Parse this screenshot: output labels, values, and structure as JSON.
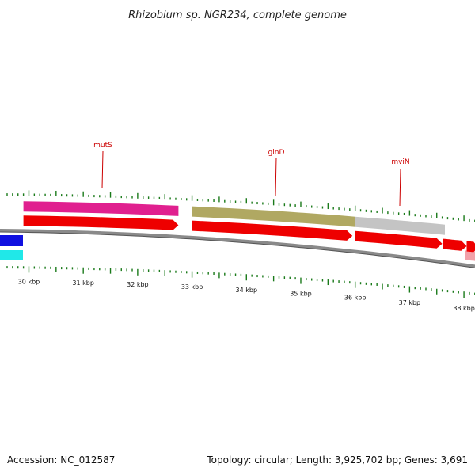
{
  "title": "Rhizobium sp. NGR234, complete genome",
  "footer": {
    "accession": "Accession: NC_012587",
    "summary": "Topology: circular; Length: 3,925,702 bp; Genes: 3,691"
  },
  "view": {
    "start_kbp": 29.6,
    "end_kbp": 38.7
  },
  "scale_labels": [
    "30 kbp",
    "31 kbp",
    "32 kbp",
    "33 kbp",
    "34 kbp",
    "35 kbp",
    "36 kbp",
    "37 kbp",
    "38 kbp"
  ],
  "scale_label_kbp": [
    30,
    31,
    32,
    33,
    34,
    35,
    36,
    37,
    38
  ],
  "colors": {
    "tick": "#1a7a1a",
    "backbone": "#8a8a8a",
    "gene_arrow": "#ee0000",
    "label": "#cc0000",
    "mutS": "#e0208f",
    "glnD": "#b0a862",
    "mviN": "#c4c4c4",
    "next_feature": "#f2a0a8",
    "blue_feature": "#1010e0",
    "cyan_feature": "#20e8e8"
  },
  "annotations": [
    {
      "name": "mutS",
      "start_kbp": 29.9,
      "end_kbp": 32.75,
      "color": "mutS"
    },
    {
      "name": "glnD",
      "start_kbp": 33.0,
      "end_kbp": 36.0,
      "color": "glnD"
    },
    {
      "name": "mviN",
      "start_kbp": 36.0,
      "end_kbp": 37.65,
      "color": "mviN"
    }
  ],
  "annotation_labels": [
    "mutS",
    "glnD",
    "mviN"
  ],
  "genes": [
    {
      "start_kbp": 29.9,
      "end_kbp": 32.75
    },
    {
      "start_kbp": 33.0,
      "end_kbp": 35.95
    },
    {
      "start_kbp": 36.0,
      "end_kbp": 37.6
    },
    {
      "start_kbp": 37.62,
      "end_kbp": 38.05
    },
    {
      "start_kbp": 38.05,
      "end_kbp": 38.7
    }
  ]
}
